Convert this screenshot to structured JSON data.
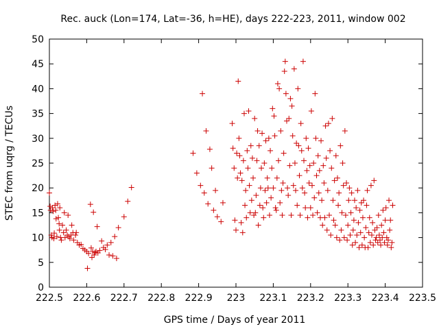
{
  "chart_data": {
    "type": "scatter",
    "title": "Rec. auck (Lon=174, Lat=-36, h=HE), days 222-223, 2011, window 002",
    "xlabel": "GPS time / Days of year 2011",
    "ylabel": "STEC from uqrg / TECUs",
    "xlim": [
      222.5,
      223.5
    ],
    "ylim": [
      0,
      50
    ],
    "xticks": [
      "222.5",
      "222.6",
      "222.7",
      "222.8",
      "222.9",
      "223",
      "223.1",
      "223.2",
      "223.3",
      "223.4",
      "223.5"
    ],
    "yticks": [
      "0",
      "5",
      "10",
      "15",
      "20",
      "25",
      "30",
      "35",
      "40",
      "45",
      "50"
    ],
    "marker": "+",
    "color": "#cc0000",
    "grid": false,
    "points": [
      [
        222.5,
        19.0
      ],
      [
        222.502,
        16.3
      ],
      [
        222.503,
        15.5
      ],
      [
        222.505,
        10.5
      ],
      [
        222.507,
        10.0
      ],
      [
        222.508,
        16.0
      ],
      [
        222.51,
        15.3
      ],
      [
        222.512,
        9.8
      ],
      [
        222.513,
        10.9
      ],
      [
        222.515,
        16.5
      ],
      [
        222.517,
        15.5
      ],
      [
        222.518,
        13.8
      ],
      [
        222.52,
        10.2
      ],
      [
        222.522,
        16.8
      ],
      [
        222.524,
        14.0
      ],
      [
        222.526,
        12.8
      ],
      [
        222.527,
        11.5
      ],
      [
        222.528,
        16.0
      ],
      [
        222.53,
        10.0
      ],
      [
        222.532,
        9.5
      ],
      [
        222.535,
        12.5
      ],
      [
        222.538,
        11.0
      ],
      [
        222.54,
        15.0
      ],
      [
        222.542,
        10.0
      ],
      [
        222.545,
        11.5
      ],
      [
        222.548,
        10.5
      ],
      [
        222.55,
        14.5
      ],
      [
        222.552,
        10.2
      ],
      [
        222.555,
        9.8
      ],
      [
        222.558,
        10.5
      ],
      [
        222.56,
        12.5
      ],
      [
        222.563,
        11.0
      ],
      [
        222.565,
        9.5
      ],
      [
        222.57,
        10.5
      ],
      [
        222.572,
        11.0
      ],
      [
        222.575,
        9.0
      ],
      [
        222.58,
        8.5
      ],
      [
        222.585,
        8.6
      ],
      [
        222.59,
        7.8
      ],
      [
        222.595,
        7.5
      ],
      [
        222.6,
        7.2
      ],
      [
        222.602,
        3.8
      ],
      [
        222.605,
        6.8
      ],
      [
        222.61,
        16.7
      ],
      [
        222.612,
        7.9
      ],
      [
        222.614,
        6.0
      ],
      [
        222.616,
        7.2
      ],
      [
        222.618,
        15.1
      ],
      [
        222.62,
        6.5
      ],
      [
        222.622,
        7.0
      ],
      [
        222.625,
        7.2
      ],
      [
        222.628,
        12.2
      ],
      [
        222.63,
        6.9
      ],
      [
        222.635,
        7.4
      ],
      [
        222.64,
        9.3
      ],
      [
        222.645,
        8.0
      ],
      [
        222.65,
        7.6
      ],
      [
        222.655,
        8.5
      ],
      [
        222.66,
        6.5
      ],
      [
        222.665,
        9.0
      ],
      [
        222.67,
        6.3
      ],
      [
        222.675,
        10.2
      ],
      [
        222.68,
        5.8
      ],
      [
        222.685,
        12.0
      ],
      [
        222.7,
        14.2
      ],
      [
        222.71,
        17.3
      ],
      [
        222.72,
        20.1
      ],
      [
        222.885,
        27.0
      ],
      [
        222.895,
        23.0
      ],
      [
        222.905,
        20.5
      ],
      [
        222.91,
        39.0
      ],
      [
        222.915,
        19.0
      ],
      [
        222.92,
        31.5
      ],
      [
        222.925,
        16.8
      ],
      [
        222.93,
        27.8
      ],
      [
        222.935,
        24.0
      ],
      [
        222.94,
        15.5
      ],
      [
        222.945,
        19.5
      ],
      [
        222.95,
        14.2
      ],
      [
        222.96,
        13.2
      ],
      [
        222.965,
        17.0
      ],
      [
        222.99,
        33.0
      ],
      [
        222.992,
        28.0
      ],
      [
        222.995,
        24.0
      ],
      [
        222.997,
        13.5
      ],
      [
        223.0,
        11.5
      ],
      [
        223.002,
        27.0
      ],
      [
        223.004,
        22.0
      ],
      [
        223.006,
        41.5
      ],
      [
        223.008,
        30.0
      ],
      [
        223.01,
        26.5
      ],
      [
        223.012,
        23.0
      ],
      [
        223.014,
        13.0
      ],
      [
        223.016,
        21.5
      ],
      [
        223.018,
        11.0
      ],
      [
        223.02,
        25.5
      ],
      [
        223.022,
        35.0
      ],
      [
        223.024,
        16.5
      ],
      [
        223.026,
        19.5
      ],
      [
        223.028,
        14.0
      ],
      [
        223.03,
        27.5
      ],
      [
        223.032,
        24.0
      ],
      [
        223.034,
        35.5
      ],
      [
        223.036,
        20.5
      ],
      [
        223.038,
        15.0
      ],
      [
        223.04,
        28.5
      ],
      [
        223.042,
        17.5
      ],
      [
        223.044,
        26.0
      ],
      [
        223.046,
        22.0
      ],
      [
        223.048,
        14.5
      ],
      [
        223.05,
        34.0
      ],
      [
        223.052,
        15.0
      ],
      [
        223.054,
        18.5
      ],
      [
        223.056,
        25.5
      ],
      [
        223.058,
        31.5
      ],
      [
        223.06,
        12.5
      ],
      [
        223.062,
        28.5
      ],
      [
        223.064,
        16.5
      ],
      [
        223.066,
        20.0
      ],
      [
        223.068,
        24.0
      ],
      [
        223.07,
        31.0
      ],
      [
        223.072,
        16.0
      ],
      [
        223.074,
        14.0
      ],
      [
        223.076,
        25.0
      ],
      [
        223.078,
        19.5
      ],
      [
        223.08,
        29.5
      ],
      [
        223.082,
        17.0
      ],
      [
        223.084,
        22.0
      ],
      [
        223.086,
        20.0
      ],
      [
        223.088,
        30.0
      ],
      [
        223.09,
        14.5
      ],
      [
        223.092,
        27.5
      ],
      [
        223.094,
        18.0
      ],
      [
        223.096,
        24.0
      ],
      [
        223.098,
        36.0
      ],
      [
        223.1,
        20.0
      ],
      [
        223.102,
        34.5
      ],
      [
        223.104,
        30.5
      ],
      [
        223.106,
        16.0
      ],
      [
        223.108,
        15.5
      ],
      [
        223.11,
        22.0
      ],
      [
        223.112,
        41.0
      ],
      [
        223.114,
        25.5
      ],
      [
        223.116,
        40.0
      ],
      [
        223.118,
        17.0
      ],
      [
        223.12,
        31.5
      ],
      [
        223.122,
        19.5
      ],
      [
        223.124,
        14.5
      ],
      [
        223.126,
        21.0
      ],
      [
        223.128,
        27.0
      ],
      [
        223.13,
        43.5
      ],
      [
        223.132,
        45.5
      ],
      [
        223.134,
        39.0
      ],
      [
        223.136,
        33.5
      ],
      [
        223.138,
        20.0
      ],
      [
        223.14,
        18.5
      ],
      [
        223.142,
        34.0
      ],
      [
        223.144,
        24.5
      ],
      [
        223.146,
        38.0
      ],
      [
        223.148,
        14.5
      ],
      [
        223.15,
        36.5
      ],
      [
        223.152,
        30.5
      ],
      [
        223.154,
        20.5
      ],
      [
        223.156,
        44.0
      ],
      [
        223.158,
        25.0
      ],
      [
        223.16,
        19.5
      ],
      [
        223.162,
        29.0
      ],
      [
        223.164,
        16.5
      ],
      [
        223.166,
        40.0
      ],
      [
        223.168,
        28.5
      ],
      [
        223.17,
        22.5
      ],
      [
        223.172,
        14.5
      ],
      [
        223.174,
        33.0
      ],
      [
        223.176,
        27.5
      ],
      [
        223.178,
        20.0
      ],
      [
        223.18,
        45.5
      ],
      [
        223.182,
        25.5
      ],
      [
        223.184,
        19.0
      ],
      [
        223.186,
        16.0
      ],
      [
        223.188,
        30.0
      ],
      [
        223.19,
        23.5
      ],
      [
        223.192,
        14.0
      ],
      [
        223.194,
        28.0
      ],
      [
        223.196,
        21.0
      ],
      [
        223.198,
        24.5
      ],
      [
        223.2,
        16.0
      ],
      [
        223.202,
        35.5
      ],
      [
        223.204,
        20.5
      ],
      [
        223.206,
        14.5
      ],
      [
        223.208,
        25.0
      ],
      [
        223.21,
        18.0
      ],
      [
        223.212,
        39.0
      ],
      [
        223.214,
        30.0
      ],
      [
        223.216,
        22.5
      ],
      [
        223.218,
        15.0
      ],
      [
        223.22,
        26.5
      ],
      [
        223.222,
        19.0
      ],
      [
        223.224,
        23.5
      ],
      [
        223.226,
        14.0
      ],
      [
        223.228,
        29.5
      ],
      [
        223.23,
        17.5
      ],
      [
        223.232,
        12.5
      ],
      [
        223.234,
        24.5
      ],
      [
        223.236,
        21.0
      ],
      [
        223.238,
        14.0
      ],
      [
        223.24,
        32.5
      ],
      [
        223.242,
        26.0
      ],
      [
        223.244,
        11.5
      ],
      [
        223.246,
        19.5
      ],
      [
        223.248,
        33.0
      ],
      [
        223.25,
        14.5
      ],
      [
        223.252,
        27.5
      ],
      [
        223.254,
        10.5
      ],
      [
        223.256,
        24.0
      ],
      [
        223.258,
        34.0
      ],
      [
        223.26,
        17.5
      ],
      [
        223.262,
        13.5
      ],
      [
        223.264,
        21.5
      ],
      [
        223.266,
        12.5
      ],
      [
        223.268,
        26.5
      ],
      [
        223.27,
        10.0
      ],
      [
        223.272,
        22.0
      ],
      [
        223.274,
        16.5
      ],
      [
        223.276,
        19.0
      ],
      [
        223.278,
        9.5
      ],
      [
        223.28,
        28.5
      ],
      [
        223.282,
        11.5
      ],
      [
        223.284,
        15.0
      ],
      [
        223.286,
        25.0
      ],
      [
        223.288,
        20.5
      ],
      [
        223.29,
        10.0
      ],
      [
        223.292,
        31.5
      ],
      [
        223.294,
        14.5
      ],
      [
        223.296,
        21.0
      ],
      [
        223.298,
        9.5
      ],
      [
        223.3,
        12.5
      ],
      [
        223.302,
        17.5
      ],
      [
        223.304,
        20.0
      ],
      [
        223.306,
        10.5
      ],
      [
        223.308,
        15.0
      ],
      [
        223.31,
        19.0
      ],
      [
        223.312,
        8.5
      ],
      [
        223.314,
        11.5
      ],
      [
        223.316,
        13.5
      ],
      [
        223.318,
        17.5
      ],
      [
        223.32,
        9.0
      ],
      [
        223.322,
        16.0
      ],
      [
        223.324,
        10.5
      ],
      [
        223.326,
        19.5
      ],
      [
        223.328,
        13.0
      ],
      [
        223.33,
        8.0
      ],
      [
        223.332,
        15.5
      ],
      [
        223.334,
        11.0
      ],
      [
        223.336,
        17.0
      ],
      [
        223.338,
        8.5
      ],
      [
        223.34,
        14.0
      ],
      [
        223.342,
        17.5
      ],
      [
        223.344,
        10.0
      ],
      [
        223.346,
        8.0
      ],
      [
        223.348,
        12.0
      ],
      [
        223.35,
        16.5
      ],
      [
        223.352,
        19.5
      ],
      [
        223.354,
        8.0
      ],
      [
        223.356,
        11.0
      ],
      [
        223.358,
        14.0
      ],
      [
        223.36,
        9.0
      ],
      [
        223.362,
        20.5
      ],
      [
        223.364,
        10.5
      ],
      [
        223.366,
        13.0
      ],
      [
        223.368,
        8.5
      ],
      [
        223.37,
        21.5
      ],
      [
        223.372,
        11.5
      ],
      [
        223.374,
        9.5
      ],
      [
        223.376,
        10.0
      ],
      [
        223.378,
        12.0
      ],
      [
        223.38,
        9.0
      ],
      [
        223.382,
        14.5
      ],
      [
        223.384,
        10.5
      ],
      [
        223.386,
        9.5
      ],
      [
        223.388,
        8.5
      ],
      [
        223.39,
        12.5
      ],
      [
        223.392,
        10.0
      ],
      [
        223.394,
        15.5
      ],
      [
        223.396,
        11.0
      ],
      [
        223.398,
        9.0
      ],
      [
        223.4,
        13.5
      ],
      [
        223.402,
        16.0
      ],
      [
        223.404,
        10.0
      ],
      [
        223.406,
        8.5
      ],
      [
        223.408,
        9.5
      ],
      [
        223.41,
        17.5
      ],
      [
        223.412,
        11.5
      ],
      [
        223.414,
        13.5
      ],
      [
        223.416,
        8.0
      ],
      [
        223.418,
        9.0
      ],
      [
        223.42,
        16.5
      ]
    ]
  }
}
